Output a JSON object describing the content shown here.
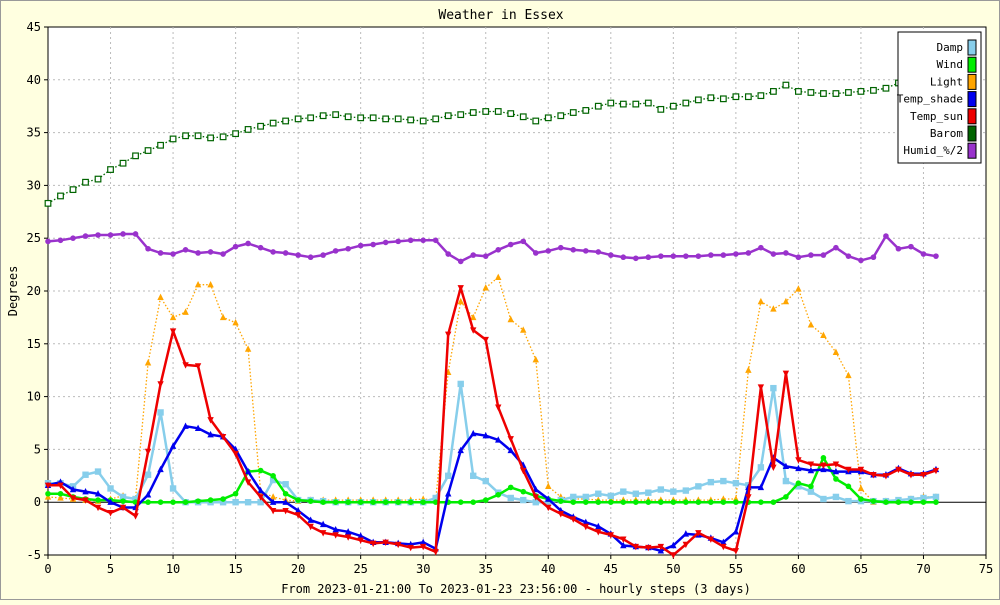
{
  "chart_data": {
    "type": "line",
    "title": "Weather in Essex",
    "ylabel": "Degrees",
    "xlabel": "From 2023-01-21:00 To 2023-01-23 23:56:00 - hourly steps (3 days)",
    "xlim": [
      0,
      75
    ],
    "ylim": [
      -5,
      45
    ],
    "xticks": [
      0,
      5,
      10,
      15,
      20,
      25,
      30,
      35,
      40,
      45,
      50,
      55,
      60,
      65,
      70,
      75
    ],
    "yticks": [
      -5,
      0,
      5,
      10,
      15,
      20,
      25,
      30,
      35,
      40,
      45
    ],
    "grid": true,
    "legend_position": "top-right",
    "series": [
      {
        "name": "Light",
        "color": "#FFA500",
        "style": "dotted",
        "marker": "triangle-up",
        "values": [
          0.5,
          0.4,
          0.3,
          0.2,
          0.1,
          0.3,
          0.6,
          0.3,
          13.2,
          19.4,
          17.5,
          18.0,
          20.6,
          20.6,
          17.5,
          17.0,
          14.5,
          1.0,
          0.5,
          0.2,
          0.1,
          0.2,
          0.2,
          0.2,
          0.2,
          0.2,
          0.2,
          0.2,
          0.2,
          0.2,
          0.3,
          0.2,
          12.3,
          19.0,
          17.5,
          20.3,
          21.3,
          17.3,
          16.3,
          13.5,
          1.5,
          0.5,
          0.3,
          0.3,
          0.2,
          0.2,
          0.2,
          0.2,
          0.2,
          0.2,
          0.2,
          0.2,
          0.2,
          0.2,
          0.3,
          0.3,
          12.5,
          19.0,
          18.3,
          19.0,
          20.2,
          16.8,
          15.8,
          14.2,
          12.0,
          1.3,
          0.0,
          0.1,
          0.1,
          0.3,
          0.5,
          0.5
        ]
      },
      {
        "name": "Wind",
        "color": "#00EE00",
        "style": "solid",
        "marker": "circle",
        "values": [
          0.8,
          0.8,
          0.5,
          0.3,
          0.2,
          0.2,
          0.1,
          0.0,
          0.0,
          0.0,
          0.0,
          0.0,
          0.1,
          0.2,
          0.3,
          0.8,
          2.9,
          3.0,
          2.5,
          0.8,
          0.2,
          0.1,
          0.0,
          0.0,
          0.0,
          0.0,
          0.0,
          0.0,
          0.0,
          0.0,
          0.0,
          0.0,
          0.0,
          0.0,
          0.0,
          0.2,
          0.7,
          1.4,
          1.0,
          0.6,
          0.3,
          0.1,
          0.0,
          0.0,
          0.0,
          0.0,
          0.0,
          0.0,
          0.0,
          0.0,
          0.0,
          0.0,
          0.0,
          0.0,
          0.0,
          0.0,
          0.0,
          0.0,
          0.0,
          0.5,
          1.8,
          1.5,
          4.2,
          2.2,
          1.5,
          0.3,
          0.1,
          0.0,
          0.0,
          0.0,
          0.0,
          0.0
        ]
      },
      {
        "name": "Damp",
        "color": "#87CEEB",
        "style": "solid",
        "marker": "square",
        "values": [
          1.8,
          1.8,
          1.5,
          2.6,
          2.9,
          1.3,
          0.5,
          0.3,
          2.6,
          8.5,
          1.3,
          0.0,
          0.0,
          0.0,
          0.0,
          0.0,
          0.0,
          0.0,
          2.1,
          1.7,
          0.2,
          0.2,
          0.1,
          0.0,
          0.0,
          0.0,
          0.0,
          0.0,
          0.0,
          0.0,
          0.0,
          0.4,
          2.5,
          11.2,
          2.5,
          2.0,
          0.9,
          0.4,
          0.2,
          0.0,
          0.0,
          0.2,
          0.5,
          0.5,
          0.8,
          0.6,
          1.0,
          0.8,
          0.9,
          1.2,
          1.0,
          1.1,
          1.5,
          1.9,
          2.0,
          1.8,
          1.6,
          3.3,
          10.8,
          2.0,
          1.5,
          1.0,
          0.3,
          0.5,
          0.1,
          0.1,
          0.1,
          0.1,
          0.2,
          0.3,
          0.4,
          0.5
        ]
      },
      {
        "name": "Temp_shade",
        "color": "#0000EE",
        "style": "solid",
        "marker": "triangle-up",
        "values": [
          1.6,
          1.9,
          1.2,
          1.0,
          0.8,
          0.0,
          -0.5,
          -0.5,
          0.7,
          3.1,
          5.3,
          7.2,
          7.0,
          6.4,
          6.2,
          5.0,
          2.9,
          1.1,
          0.0,
          0.0,
          -0.8,
          -1.7,
          -2.1,
          -2.6,
          -2.8,
          -3.2,
          -3.8,
          -3.8,
          -3.9,
          -4.0,
          -3.8,
          -4.4,
          0.8,
          4.9,
          6.5,
          6.3,
          5.9,
          4.9,
          3.5,
          1.2,
          0.3,
          -0.8,
          -1.4,
          -1.9,
          -2.3,
          -3.0,
          -4.1,
          -4.2,
          -4.3,
          -4.6,
          -4.1,
          -3.0,
          -3.1,
          -3.4,
          -3.8,
          -2.8,
          1.4,
          1.4,
          4.2,
          3.4,
          3.2,
          3.0,
          3.1,
          2.9,
          2.9,
          2.9,
          2.6,
          2.6,
          3.2,
          2.7,
          2.7,
          3.1
        ]
      },
      {
        "name": "Temp_sun",
        "color": "#EE0000",
        "style": "solid",
        "marker": "triangle-down",
        "values": [
          1.6,
          1.6,
          0.4,
          0.2,
          -0.5,
          -1.0,
          -0.5,
          -1.3,
          4.8,
          11.2,
          16.2,
          13.0,
          12.9,
          7.8,
          6.2,
          4.6,
          1.9,
          0.5,
          -0.8,
          -0.8,
          -1.2,
          -2.3,
          -2.9,
          -3.1,
          -3.3,
          -3.6,
          -3.9,
          -3.8,
          -4.0,
          -4.3,
          -4.2,
          -4.7,
          15.9,
          20.3,
          16.3,
          15.4,
          9.0,
          6.0,
          3.0,
          0.5,
          -0.5,
          -1.1,
          -1.6,
          -2.3,
          -2.8,
          -3.1,
          -3.5,
          -4.2,
          -4.3,
          -4.2,
          -5.0,
          -4.0,
          -2.9,
          -3.5,
          -4.2,
          -4.6,
          0.5,
          10.9,
          3.3,
          12.2,
          4.0,
          3.6,
          3.5,
          3.6,
          3.1,
          3.1,
          2.6,
          2.5,
          3.1,
          2.6,
          2.6,
          3.0
        ]
      },
      {
        "name": "Barom",
        "color": "#006400",
        "style": "dotted",
        "marker": "square-open",
        "values": [
          28.3,
          29.0,
          29.6,
          30.3,
          30.6,
          31.5,
          32.1,
          32.8,
          33.3,
          33.8,
          34.4,
          34.7,
          34.7,
          34.5,
          34.6,
          34.9,
          35.3,
          35.6,
          35.9,
          36.1,
          36.3,
          36.4,
          36.6,
          36.7,
          36.5,
          36.4,
          36.4,
          36.3,
          36.3,
          36.2,
          36.1,
          36.3,
          36.6,
          36.7,
          36.9,
          37.0,
          37.0,
          36.8,
          36.5,
          36.1,
          36.4,
          36.6,
          36.9,
          37.1,
          37.5,
          37.8,
          37.7,
          37.7,
          37.8,
          37.2,
          37.5,
          37.8,
          38.1,
          38.3,
          38.2,
          38.4,
          38.4,
          38.5,
          38.9,
          39.5,
          38.9,
          38.8,
          38.7,
          38.7,
          38.8,
          38.9,
          39.0,
          39.2,
          39.7,
          39.6,
          39.7,
          40.0
        ]
      },
      {
        "name": "Humid_%/2",
        "color": "#9932CC",
        "style": "solid",
        "marker": "circle",
        "values": [
          24.7,
          24.8,
          25.0,
          25.2,
          25.3,
          25.3,
          25.4,
          25.4,
          24.0,
          23.6,
          23.5,
          23.9,
          23.6,
          23.7,
          23.5,
          24.2,
          24.5,
          24.1,
          23.7,
          23.6,
          23.4,
          23.2,
          23.4,
          23.8,
          24.0,
          24.3,
          24.4,
          24.6,
          24.7,
          24.8,
          24.8,
          24.8,
          23.5,
          22.8,
          23.4,
          23.3,
          23.9,
          24.4,
          24.7,
          23.6,
          23.8,
          24.1,
          23.9,
          23.8,
          23.7,
          23.4,
          23.2,
          23.1,
          23.2,
          23.3,
          23.3,
          23.3,
          23.3,
          23.4,
          23.4,
          23.5,
          23.6,
          24.1,
          23.5,
          23.6,
          23.2,
          23.4,
          23.4,
          24.1,
          23.3,
          22.9,
          23.2,
          25.2,
          24.0,
          24.2,
          23.5,
          23.3
        ]
      }
    ],
    "legend_order": [
      "Damp",
      "Wind",
      "Light",
      "Temp_shade",
      "Temp_sun",
      "Barom",
      "Humid_%/2"
    ]
  }
}
